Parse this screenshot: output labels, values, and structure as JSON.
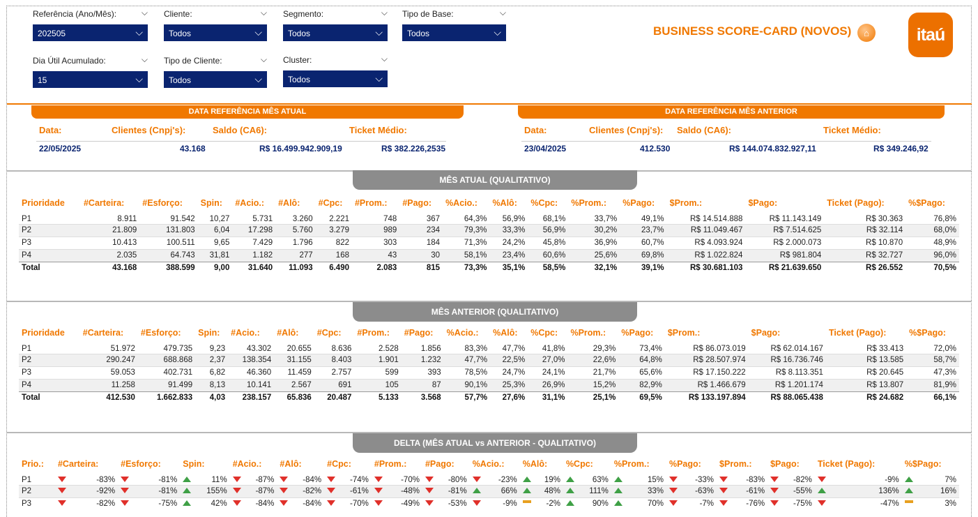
{
  "filters": {
    "referencia": {
      "label": "Referência (Ano/Mês):",
      "value": "202505"
    },
    "cliente": {
      "label": "Cliente:",
      "value": "Todos"
    },
    "segmento": {
      "label": "Segmento:",
      "value": "Todos"
    },
    "tipo_base": {
      "label": "Tipo de Base:",
      "value": "Todos"
    },
    "dia_util": {
      "label": "Dia Útil Acumulado:",
      "value": "15"
    },
    "tipo_cliente": {
      "label": "Tipo de Cliente:",
      "value": "Todos"
    },
    "cluster": {
      "label": "Cluster:",
      "value": "Todos"
    }
  },
  "header": {
    "title": "BUSINESS SCORE-CARD (NOVOS)",
    "logo_text": "itaú",
    "accent": "#f07800",
    "navy": "#0a2470"
  },
  "ref_atual": {
    "title": "DATA REFERÊNCIA MÊS ATUAL",
    "labels": {
      "data": "Data:",
      "clientes": "Clientes (Cnpj's):",
      "saldo": "Saldo (CA6):",
      "ticket": "Ticket Médio:"
    },
    "values": {
      "data": "22/05/2025",
      "clientes": "43.168",
      "saldo": "R$ 16.499.942.909,19",
      "ticket": "R$ 382.226,2535"
    }
  },
  "ref_anterior": {
    "title": "DATA REFERÊNCIA MÊS ANTERIOR",
    "labels": {
      "data": "Data:",
      "clientes": "Clientes (Cnpj's):",
      "saldo": "Saldo (CA6):",
      "ticket": "Ticket Médio:"
    },
    "values": {
      "data": "23/04/2025",
      "clientes": "412.530",
      "saldo": "R$ 144.074.832.927,11",
      "ticket": "R$ 349.246,92"
    }
  },
  "mes_atual": {
    "title": "MÊS ATUAL (QUALITATIVO)",
    "headers": [
      "Prioridade",
      "#Carteira:",
      "#Esforço:",
      "Spin:",
      "#Acio.:",
      "#Alô:",
      "#Cpc:",
      "#Prom.:",
      "#Pago:",
      "%Acio.:",
      "%Alô:",
      "%Cpc:",
      "%Prom.:",
      "%Pago:",
      "$Prom.:",
      "$Pago:",
      "Ticket (Pago):",
      "%$Pago:"
    ],
    "rows": [
      [
        "P1",
        "8.911",
        "91.542",
        "10,27",
        "5.731",
        "3.260",
        "2.221",
        "748",
        "367",
        "64,3%",
        "56,9%",
        "68,1%",
        "33,7%",
        "49,1%",
        "R$ 14.514.888",
        "R$ 11.143.149",
        "R$ 30.363",
        "76,8%"
      ],
      [
        "P2",
        "21.809",
        "131.803",
        "6,04",
        "17.298",
        "5.760",
        "3.279",
        "989",
        "234",
        "79,3%",
        "33,3%",
        "56,9%",
        "30,2%",
        "23,7%",
        "R$ 11.049.467",
        "R$ 7.514.625",
        "R$ 32.114",
        "68,0%"
      ],
      [
        "P3",
        "10.413",
        "100.511",
        "9,65",
        "7.429",
        "1.796",
        "822",
        "303",
        "184",
        "71,3%",
        "24,2%",
        "45,8%",
        "36,9%",
        "60,7%",
        "R$ 4.093.924",
        "R$ 2.000.073",
        "R$ 10.870",
        "48,9%"
      ],
      [
        "P4",
        "2.035",
        "64.743",
        "31,81",
        "1.182",
        "277",
        "168",
        "43",
        "30",
        "58,1%",
        "23,4%",
        "60,6%",
        "25,6%",
        "69,8%",
        "R$ 1.022.824",
        "R$ 981.804",
        "R$ 32.727",
        "96,0%"
      ]
    ],
    "total": [
      "Total",
      "43.168",
      "388.599",
      "9,00",
      "31.640",
      "11.093",
      "6.490",
      "2.083",
      "815",
      "73,3%",
      "35,1%",
      "58,5%",
      "32,1%",
      "39,1%",
      "R$ 30.681.103",
      "R$ 21.639.650",
      "R$ 26.552",
      "70,5%"
    ]
  },
  "mes_anterior": {
    "title": "MÊS ANTERIOR (QUALITATIVO)",
    "headers": [
      "Prioridade",
      "#Carteira:",
      "#Esforço:",
      "Spin:",
      "#Acio.:",
      "#Alô:",
      "#Cpc:",
      "#Prom.:",
      "#Pago:",
      "%Acio.:",
      "%Alô:",
      "%Cpc:",
      "%Prom.:",
      "%Pago:",
      "$Prom.:",
      "$Pago:",
      "Ticket (Pago):",
      "%$Pago:"
    ],
    "rows": [
      [
        "P1",
        "51.972",
        "479.735",
        "9,23",
        "43.302",
        "20.655",
        "8.636",
        "2.528",
        "1.856",
        "83,3%",
        "47,7%",
        "41,8%",
        "29,3%",
        "73,4%",
        "R$ 86.073.019",
        "R$ 62.014.167",
        "R$ 33.413",
        "72,0%"
      ],
      [
        "P2",
        "290.247",
        "688.868",
        "2,37",
        "138.354",
        "31.155",
        "8.403",
        "1.901",
        "1.232",
        "47,7%",
        "22,5%",
        "27,0%",
        "22,6%",
        "64,8%",
        "R$ 28.507.974",
        "R$ 16.736.746",
        "R$ 13.585",
        "58,7%"
      ],
      [
        "P3",
        "59.053",
        "402.731",
        "6,82",
        "46.360",
        "11.459",
        "2.757",
        "599",
        "393",
        "78,5%",
        "24,7%",
        "24,1%",
        "21,7%",
        "65,6%",
        "R$ 17.150.222",
        "R$ 8.113.351",
        "R$ 20.645",
        "47,3%"
      ],
      [
        "P4",
        "11.258",
        "91.499",
        "8,13",
        "10.141",
        "2.567",
        "691",
        "105",
        "87",
        "90,1%",
        "25,3%",
        "26,9%",
        "15,2%",
        "82,9%",
        "R$ 1.466.679",
        "R$ 1.201.174",
        "R$ 13.807",
        "81,9%"
      ]
    ],
    "total": [
      "Total",
      "412.530",
      "1.662.833",
      "4,03",
      "238.157",
      "65.836",
      "20.487",
      "5.133",
      "3.568",
      "57,7%",
      "27,6%",
      "31,1%",
      "25,1%",
      "69,5%",
      "R$ 133.197.894",
      "R$ 88.065.438",
      "R$ 24.682",
      "66,1%"
    ]
  },
  "delta": {
    "title": "DELTA (MÊS ATUAL vs ANTERIOR - QUALITATIVO)",
    "headers": [
      "Prio.:",
      "#Carteira:",
      "#Esforço:",
      "Spin:",
      "#Acio.:",
      "#Alô:",
      "#Cpc:",
      "#Prom.:",
      "#Pago:",
      "%Acio.:",
      "%Alô:",
      "%Cpc:",
      "%Prom.:",
      "%Pago:",
      "$Prom.:",
      "$Pago:",
      "Ticket (Pago):",
      "%$Pago:"
    ],
    "rows": [
      {
        "label": "P1",
        "cells": [
          [
            "down",
            "-83%"
          ],
          [
            "down",
            "-81%"
          ],
          [
            "up",
            "11%"
          ],
          [
            "down",
            "-87%"
          ],
          [
            "down",
            "-84%"
          ],
          [
            "down",
            "-74%"
          ],
          [
            "down",
            "-70%"
          ],
          [
            "down",
            "-80%"
          ],
          [
            "down",
            "-23%"
          ],
          [
            "up",
            "19%"
          ],
          [
            "up",
            "63%"
          ],
          [
            "up",
            "15%"
          ],
          [
            "down",
            "-33%"
          ],
          [
            "down",
            "-83%"
          ],
          [
            "down",
            "-82%"
          ],
          [
            "down",
            "-9%"
          ],
          [
            "up",
            "7%"
          ]
        ]
      },
      {
        "label": "P2",
        "cells": [
          [
            "down",
            "-92%"
          ],
          [
            "down",
            "-81%"
          ],
          [
            "up",
            "155%"
          ],
          [
            "down",
            "-87%"
          ],
          [
            "down",
            "-82%"
          ],
          [
            "down",
            "-61%"
          ],
          [
            "down",
            "-48%"
          ],
          [
            "down",
            "-81%"
          ],
          [
            "up",
            "66%"
          ],
          [
            "up",
            "48%"
          ],
          [
            "up",
            "111%"
          ],
          [
            "up",
            "33%"
          ],
          [
            "down",
            "-63%"
          ],
          [
            "down",
            "-61%"
          ],
          [
            "down",
            "-55%"
          ],
          [
            "up",
            "136%"
          ],
          [
            "up",
            "16%"
          ]
        ]
      },
      {
        "label": "P3",
        "cells": [
          [
            "down",
            "-82%"
          ],
          [
            "down",
            "-75%"
          ],
          [
            "up",
            "42%"
          ],
          [
            "down",
            "-84%"
          ],
          [
            "down",
            "-84%"
          ],
          [
            "down",
            "-70%"
          ],
          [
            "down",
            "-49%"
          ],
          [
            "down",
            "-53%"
          ],
          [
            "down",
            "-9%"
          ],
          [
            "flat",
            "-2%"
          ],
          [
            "up",
            "90%"
          ],
          [
            "up",
            "70%"
          ],
          [
            "down",
            "-7%"
          ],
          [
            "down",
            "-76%"
          ],
          [
            "down",
            "-75%"
          ],
          [
            "down",
            "-47%"
          ],
          [
            "flat",
            "3%"
          ]
        ]
      }
    ]
  }
}
